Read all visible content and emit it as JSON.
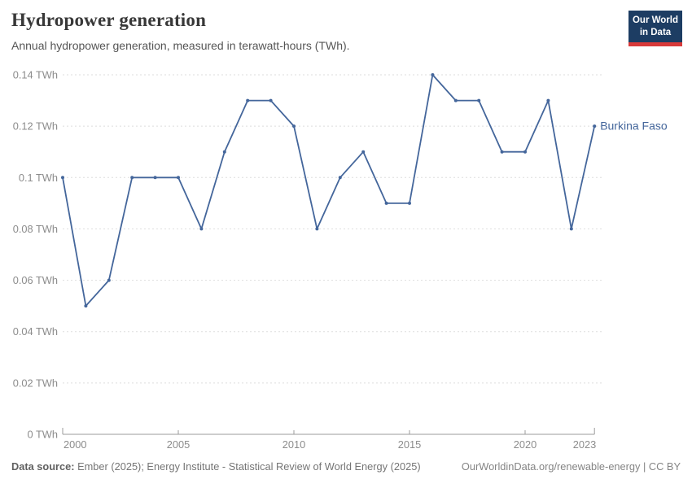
{
  "header": {
    "title": "Hydropower generation",
    "subtitle": "Annual hydropower generation, measured in terawatt-hours (TWh).",
    "logo": {
      "line1": "Our World",
      "line2": "in Data"
    }
  },
  "chart_data": {
    "type": "line",
    "title": "Hydropower generation",
    "unit": "TWh",
    "x": [
      2000,
      2001,
      2002,
      2003,
      2004,
      2005,
      2006,
      2007,
      2008,
      2009,
      2010,
      2011,
      2012,
      2013,
      2014,
      2015,
      2016,
      2017,
      2018,
      2019,
      2020,
      2021,
      2022,
      2023
    ],
    "series": [
      {
        "name": "Burkina Faso",
        "values": [
          0.1,
          0.05,
          0.06,
          0.1,
          0.1,
          0.1,
          0.08,
          0.11,
          0.13,
          0.13,
          0.12,
          0.08,
          0.1,
          0.11,
          0.09,
          0.09,
          0.14,
          0.13,
          0.13,
          0.11,
          0.11,
          0.13,
          0.08,
          0.12
        ],
        "color": "#44669B"
      }
    ],
    "ylim": [
      0,
      0.14
    ],
    "yticks": [
      0,
      0.02,
      0.04,
      0.06,
      0.08,
      0.1,
      0.12,
      0.14
    ],
    "ytick_suffix": " TWh",
    "xticks": [
      2000,
      2005,
      2010,
      2015,
      2020,
      2023
    ],
    "grid": true,
    "legend_position": "end-of-line"
  },
  "footer": {
    "datasource_label": "Data source:",
    "datasource_text": " Ember (2025); Energy Institute - Statistical Review of World Energy (2025)",
    "right_text": "OurWorldinData.org/renewable-energy | CC BY"
  },
  "colors": {
    "line": "#44669B",
    "logo_bg": "#1d3d63",
    "logo_bar": "#d93a3a",
    "grid": "#dedede",
    "axis": "#9b9b9b",
    "tick_label": "#8c8c8c"
  }
}
